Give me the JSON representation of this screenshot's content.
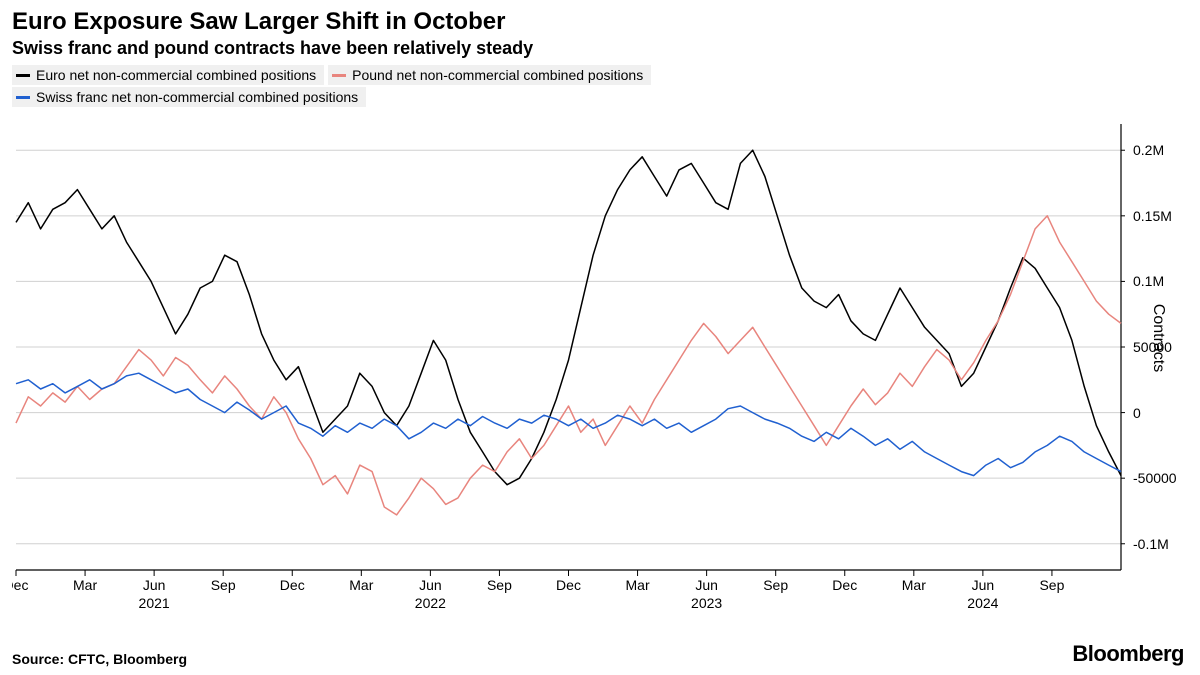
{
  "title": "Euro Exposure Saw Larger Shift in October",
  "subtitle": "Swiss franc and pound contracts have been relatively steady",
  "source": "Source: CFTC, Bloomberg",
  "brand": "Bloomberg",
  "yaxis_title": "Contracts",
  "chart": {
    "type": "line",
    "background_color": "#ffffff",
    "grid_color": "#d0d0d0",
    "axis_color": "#000000",
    "line_width": 1.5,
    "x": {
      "domain": [
        0,
        48
      ],
      "ticks": [
        {
          "pos": 0,
          "label": "Dec"
        },
        {
          "pos": 3,
          "label": "Mar"
        },
        {
          "pos": 6,
          "label": "Jun"
        },
        {
          "pos": 9,
          "label": "Sep"
        },
        {
          "pos": 12,
          "label": "Dec"
        },
        {
          "pos": 15,
          "label": "Mar"
        },
        {
          "pos": 18,
          "label": "Jun"
        },
        {
          "pos": 21,
          "label": "Sep"
        },
        {
          "pos": 24,
          "label": "Dec"
        },
        {
          "pos": 27,
          "label": "Mar"
        },
        {
          "pos": 30,
          "label": "Jun"
        },
        {
          "pos": 33,
          "label": "Sep"
        },
        {
          "pos": 36,
          "label": "Dec"
        },
        {
          "pos": 39,
          "label": "Mar"
        },
        {
          "pos": 42,
          "label": "Jun"
        },
        {
          "pos": 45,
          "label": "Sep"
        }
      ],
      "year_ticks": [
        {
          "pos": 6,
          "label": "2021"
        },
        {
          "pos": 18,
          "label": "2022"
        },
        {
          "pos": 30,
          "label": "2023"
        },
        {
          "pos": 42,
          "label": "2024"
        }
      ]
    },
    "y": {
      "domain": [
        -120000,
        220000
      ],
      "ticks": [
        {
          "val": 200000,
          "label": "0.2M"
        },
        {
          "val": 150000,
          "label": "0.15M"
        },
        {
          "val": 100000,
          "label": "0.1M"
        },
        {
          "val": 50000,
          "label": "50000"
        },
        {
          "val": 0,
          "label": "0"
        },
        {
          "val": -50000,
          "label": "-50000"
        },
        {
          "val": -100000,
          "label": "-0.1M"
        }
      ]
    },
    "series": [
      {
        "name": "Euro net non-commercial combined positions",
        "color": "#000000",
        "values": [
          145000,
          160000,
          140000,
          155000,
          160000,
          170000,
          155000,
          140000,
          150000,
          130000,
          115000,
          100000,
          80000,
          60000,
          75000,
          95000,
          100000,
          120000,
          115000,
          90000,
          60000,
          40000,
          25000,
          35000,
          10000,
          -15000,
          -5000,
          5000,
          30000,
          20000,
          0,
          -10000,
          5000,
          30000,
          55000,
          40000,
          10000,
          -15000,
          -30000,
          -45000,
          -55000,
          -50000,
          -35000,
          -15000,
          10000,
          40000,
          80000,
          120000,
          150000,
          170000,
          185000,
          195000,
          180000,
          165000,
          185000,
          190000,
          175000,
          160000,
          155000,
          190000,
          200000,
          180000,
          150000,
          120000,
          95000,
          85000,
          80000,
          90000,
          70000,
          60000,
          55000,
          75000,
          95000,
          80000,
          65000,
          55000,
          45000,
          20000,
          30000,
          50000,
          70000,
          95000,
          118000,
          110000,
          95000,
          80000,
          55000,
          20000,
          -10000,
          -30000,
          -48000
        ]
      },
      {
        "name": "Pound net non-commercial combined positions",
        "color": "#e8857e",
        "values": [
          -8000,
          12000,
          5000,
          15000,
          8000,
          20000,
          10000,
          18000,
          22000,
          35000,
          48000,
          40000,
          28000,
          42000,
          36000,
          25000,
          15000,
          28000,
          18000,
          5000,
          -5000,
          12000,
          0,
          -20000,
          -35000,
          -55000,
          -48000,
          -62000,
          -40000,
          -45000,
          -72000,
          -78000,
          -65000,
          -50000,
          -58000,
          -70000,
          -65000,
          -50000,
          -40000,
          -45000,
          -30000,
          -20000,
          -35000,
          -25000,
          -10000,
          5000,
          -15000,
          -5000,
          -25000,
          -10000,
          5000,
          -8000,
          10000,
          25000,
          40000,
          55000,
          68000,
          58000,
          45000,
          55000,
          65000,
          50000,
          35000,
          20000,
          5000,
          -10000,
          -25000,
          -10000,
          5000,
          18000,
          6000,
          15000,
          30000,
          20000,
          35000,
          48000,
          40000,
          25000,
          38000,
          55000,
          70000,
          90000,
          115000,
          140000,
          150000,
          130000,
          115000,
          100000,
          85000,
          75000,
          68000
        ]
      },
      {
        "name": "Swiss franc net non-commercial combined positions",
        "color": "#2060d0",
        "values": [
          22000,
          25000,
          18000,
          22000,
          15000,
          20000,
          25000,
          18000,
          22000,
          28000,
          30000,
          25000,
          20000,
          15000,
          18000,
          10000,
          5000,
          0,
          8000,
          2000,
          -5000,
          0,
          5000,
          -8000,
          -12000,
          -18000,
          -10000,
          -15000,
          -8000,
          -12000,
          -5000,
          -10000,
          -20000,
          -15000,
          -8000,
          -12000,
          -5000,
          -10000,
          -3000,
          -8000,
          -12000,
          -5000,
          -8000,
          -2000,
          -5000,
          -10000,
          -5000,
          -12000,
          -8000,
          -2000,
          -5000,
          -10000,
          -5000,
          -12000,
          -8000,
          -15000,
          -10000,
          -5000,
          3000,
          5000,
          0,
          -5000,
          -8000,
          -12000,
          -18000,
          -22000,
          -15000,
          -20000,
          -12000,
          -18000,
          -25000,
          -20000,
          -28000,
          -22000,
          -30000,
          -35000,
          -40000,
          -45000,
          -48000,
          -40000,
          -35000,
          -42000,
          -38000,
          -30000,
          -25000,
          -18000,
          -22000,
          -30000,
          -35000,
          -40000,
          -45000
        ]
      }
    ]
  }
}
